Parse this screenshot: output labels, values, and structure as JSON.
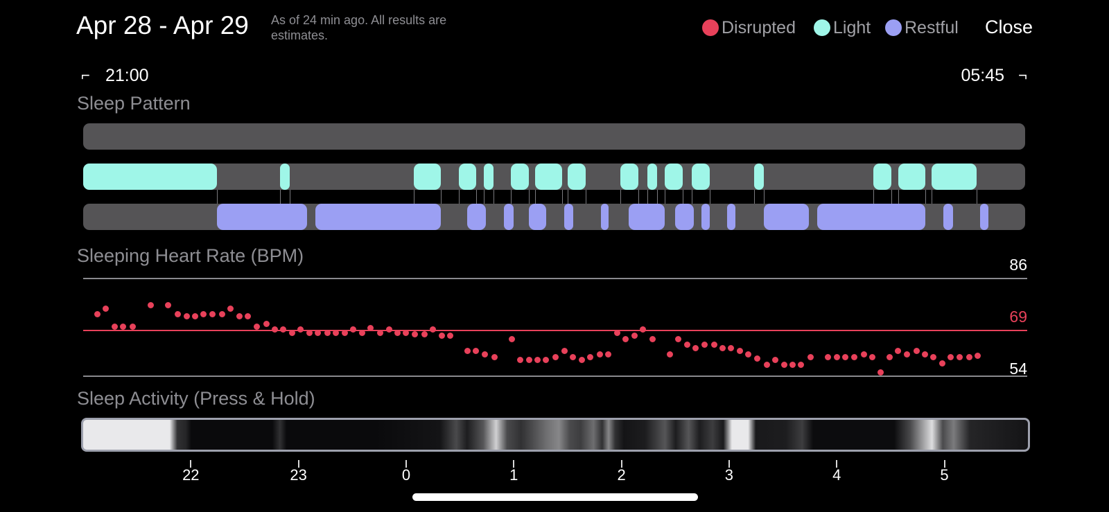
{
  "header": {
    "title": "Apr 28 - Apr 29",
    "subtitle": "As of 24 min ago. All results are estimates.",
    "close_label": "Close"
  },
  "legend": [
    {
      "label": "Disrupted",
      "color": "#e8415a"
    },
    {
      "label": "Light",
      "color": "#9ff6e8"
    },
    {
      "label": "Restful",
      "color": "#9b9ff3"
    }
  ],
  "time_range": {
    "start": "21:00",
    "end": "05:45"
  },
  "sleep_pattern": {
    "label": "Sleep Pattern",
    "light": [
      [
        21.0,
        22.24
      ],
      [
        22.83,
        22.92
      ],
      [
        24.07,
        24.32
      ],
      [
        24.49,
        24.65
      ],
      [
        24.72,
        24.81
      ],
      [
        24.97,
        25.14
      ],
      [
        25.2,
        25.45
      ],
      [
        25.5,
        25.67
      ],
      [
        25.99,
        26.16
      ],
      [
        26.24,
        26.33
      ],
      [
        26.4,
        26.57
      ],
      [
        26.65,
        26.82
      ],
      [
        27.23,
        27.32
      ],
      [
        28.34,
        28.51
      ],
      [
        28.57,
        28.82
      ],
      [
        28.88,
        29.3
      ]
    ],
    "restful": [
      [
        22.24,
        23.08
      ],
      [
        23.16,
        24.32
      ],
      [
        24.57,
        24.74
      ],
      [
        24.91,
        25.0
      ],
      [
        25.14,
        25.3
      ],
      [
        25.47,
        25.55
      ],
      [
        25.81,
        25.88
      ],
      [
        26.07,
        26.4
      ],
      [
        26.5,
        26.67
      ],
      [
        26.74,
        26.82
      ],
      [
        26.98,
        27.06
      ],
      [
        27.32,
        27.74
      ],
      [
        27.82,
        28.82
      ],
      [
        28.99,
        29.08
      ],
      [
        29.33,
        29.41
      ]
    ]
  },
  "heart_rate": {
    "label": "Sleeping Heart Rate (BPM)",
    "max": 86,
    "avg": 69,
    "min": 54,
    "samples": [
      [
        21.13,
        74
      ],
      [
        21.21,
        76
      ],
      [
        21.29,
        70
      ],
      [
        21.37,
        70
      ],
      [
        21.46,
        70
      ],
      [
        21.63,
        77
      ],
      [
        21.79,
        77
      ],
      [
        21.88,
        74
      ],
      [
        21.96,
        73.5
      ],
      [
        22.04,
        73.5
      ],
      [
        22.12,
        74
      ],
      [
        22.2,
        74
      ],
      [
        22.29,
        74
      ],
      [
        22.37,
        76
      ],
      [
        22.45,
        73.5
      ],
      [
        22.53,
        73.5
      ],
      [
        22.61,
        70
      ],
      [
        22.7,
        71
      ],
      [
        22.78,
        69
      ],
      [
        22.86,
        69
      ],
      [
        22.94,
        68
      ],
      [
        23.02,
        69
      ],
      [
        23.1,
        68
      ],
      [
        23.18,
        68
      ],
      [
        23.27,
        68
      ],
      [
        23.35,
        68
      ],
      [
        23.43,
        68
      ],
      [
        23.51,
        69
      ],
      [
        23.59,
        68
      ],
      [
        23.67,
        69.5
      ],
      [
        23.76,
        68
      ],
      [
        23.84,
        69
      ],
      [
        23.92,
        68
      ],
      [
        24.0,
        68
      ],
      [
        24.08,
        67.5
      ],
      [
        24.17,
        67.5
      ],
      [
        24.25,
        69
      ],
      [
        24.33,
        67
      ],
      [
        24.41,
        67
      ],
      [
        24.57,
        62
      ],
      [
        24.65,
        62
      ],
      [
        24.73,
        61
      ],
      [
        24.82,
        60
      ],
      [
        24.98,
        66
      ],
      [
        25.06,
        59
      ],
      [
        25.14,
        59
      ],
      [
        25.22,
        59
      ],
      [
        25.3,
        59
      ],
      [
        25.39,
        60
      ],
      [
        25.47,
        62
      ],
      [
        25.55,
        60
      ],
      [
        25.63,
        59
      ],
      [
        25.71,
        60
      ],
      [
        25.8,
        61
      ],
      [
        25.88,
        61
      ],
      [
        25.96,
        68
      ],
      [
        26.04,
        66
      ],
      [
        26.12,
        67
      ],
      [
        26.2,
        69
      ],
      [
        26.29,
        66
      ],
      [
        26.45,
        61
      ],
      [
        26.53,
        66
      ],
      [
        26.61,
        64
      ],
      [
        26.69,
        63
      ],
      [
        26.77,
        64
      ],
      [
        26.86,
        64
      ],
      [
        26.94,
        63
      ],
      [
        27.02,
        63
      ],
      [
        27.1,
        62
      ],
      [
        27.18,
        61
      ],
      [
        27.26,
        59.5
      ],
      [
        27.35,
        57.5
      ],
      [
        27.43,
        59
      ],
      [
        27.51,
        57.5
      ],
      [
        27.59,
        57.5
      ],
      [
        27.67,
        57.5
      ],
      [
        27.76,
        60
      ],
      [
        27.92,
        60
      ],
      [
        28.0,
        60
      ],
      [
        28.08,
        60
      ],
      [
        28.16,
        60
      ],
      [
        28.25,
        61
      ],
      [
        28.33,
        60
      ],
      [
        28.41,
        55
      ],
      [
        28.49,
        60
      ],
      [
        28.57,
        62
      ],
      [
        28.65,
        61
      ],
      [
        28.74,
        62
      ],
      [
        28.82,
        61
      ],
      [
        28.9,
        60
      ],
      [
        28.98,
        58
      ],
      [
        29.06,
        60
      ],
      [
        29.14,
        60
      ],
      [
        29.23,
        60
      ],
      [
        29.31,
        60.5
      ]
    ]
  },
  "sleep_activity": {
    "label": "Sleep Activity (Press & Hold)",
    "bands": [
      [
        21.0,
        0.95
      ],
      [
        21.8,
        0.95
      ],
      [
        21.87,
        0.2
      ],
      [
        21.95,
        0.15
      ],
      [
        22.0,
        0.04
      ],
      [
        22.75,
        0.04
      ],
      [
        22.82,
        0.2
      ],
      [
        22.88,
        0.04
      ],
      [
        23.7,
        0.04
      ],
      [
        24.3,
        0.08
      ],
      [
        24.45,
        0.3
      ],
      [
        24.55,
        0.12
      ],
      [
        24.7,
        0.35
      ],
      [
        24.82,
        0.85
      ],
      [
        24.92,
        0.3
      ],
      [
        25.05,
        0.2
      ],
      [
        25.15,
        0.3
      ],
      [
        25.28,
        0.45
      ],
      [
        25.4,
        0.55
      ],
      [
        25.5,
        0.3
      ],
      [
        25.6,
        0.25
      ],
      [
        25.72,
        0.45
      ],
      [
        25.8,
        0.2
      ],
      [
        25.86,
        0.55
      ],
      [
        25.92,
        0.2
      ],
      [
        26.0,
        0.08
      ],
      [
        26.2,
        0.12
      ],
      [
        26.38,
        0.35
      ],
      [
        26.48,
        0.12
      ],
      [
        26.6,
        0.35
      ],
      [
        26.7,
        0.12
      ],
      [
        26.82,
        0.25
      ],
      [
        26.92,
        0.1
      ],
      [
        27.0,
        0.95
      ],
      [
        27.15,
        0.95
      ],
      [
        27.22,
        0.1
      ],
      [
        27.5,
        0.12
      ],
      [
        27.65,
        0.25
      ],
      [
        27.75,
        0.05
      ],
      [
        28.5,
        0.05
      ],
      [
        28.65,
        0.3
      ],
      [
        28.75,
        0.6
      ],
      [
        28.85,
        0.9
      ],
      [
        28.95,
        0.3
      ],
      [
        29.05,
        0.5
      ],
      [
        29.2,
        0.15
      ],
      [
        29.75,
        0.08
      ]
    ]
  },
  "axis_ticks": [
    "22",
    "23",
    "0",
    "1",
    "2",
    "3",
    "4",
    "5"
  ]
}
